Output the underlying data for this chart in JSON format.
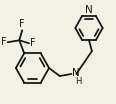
{
  "bg_color": "#f2f2e4",
  "line_color": "#111111",
  "text_color": "#111111",
  "line_width": 1.25,
  "font_size": 7.0,
  "fig_width": 1.15,
  "fig_height": 1.02,
  "dpi": 100
}
